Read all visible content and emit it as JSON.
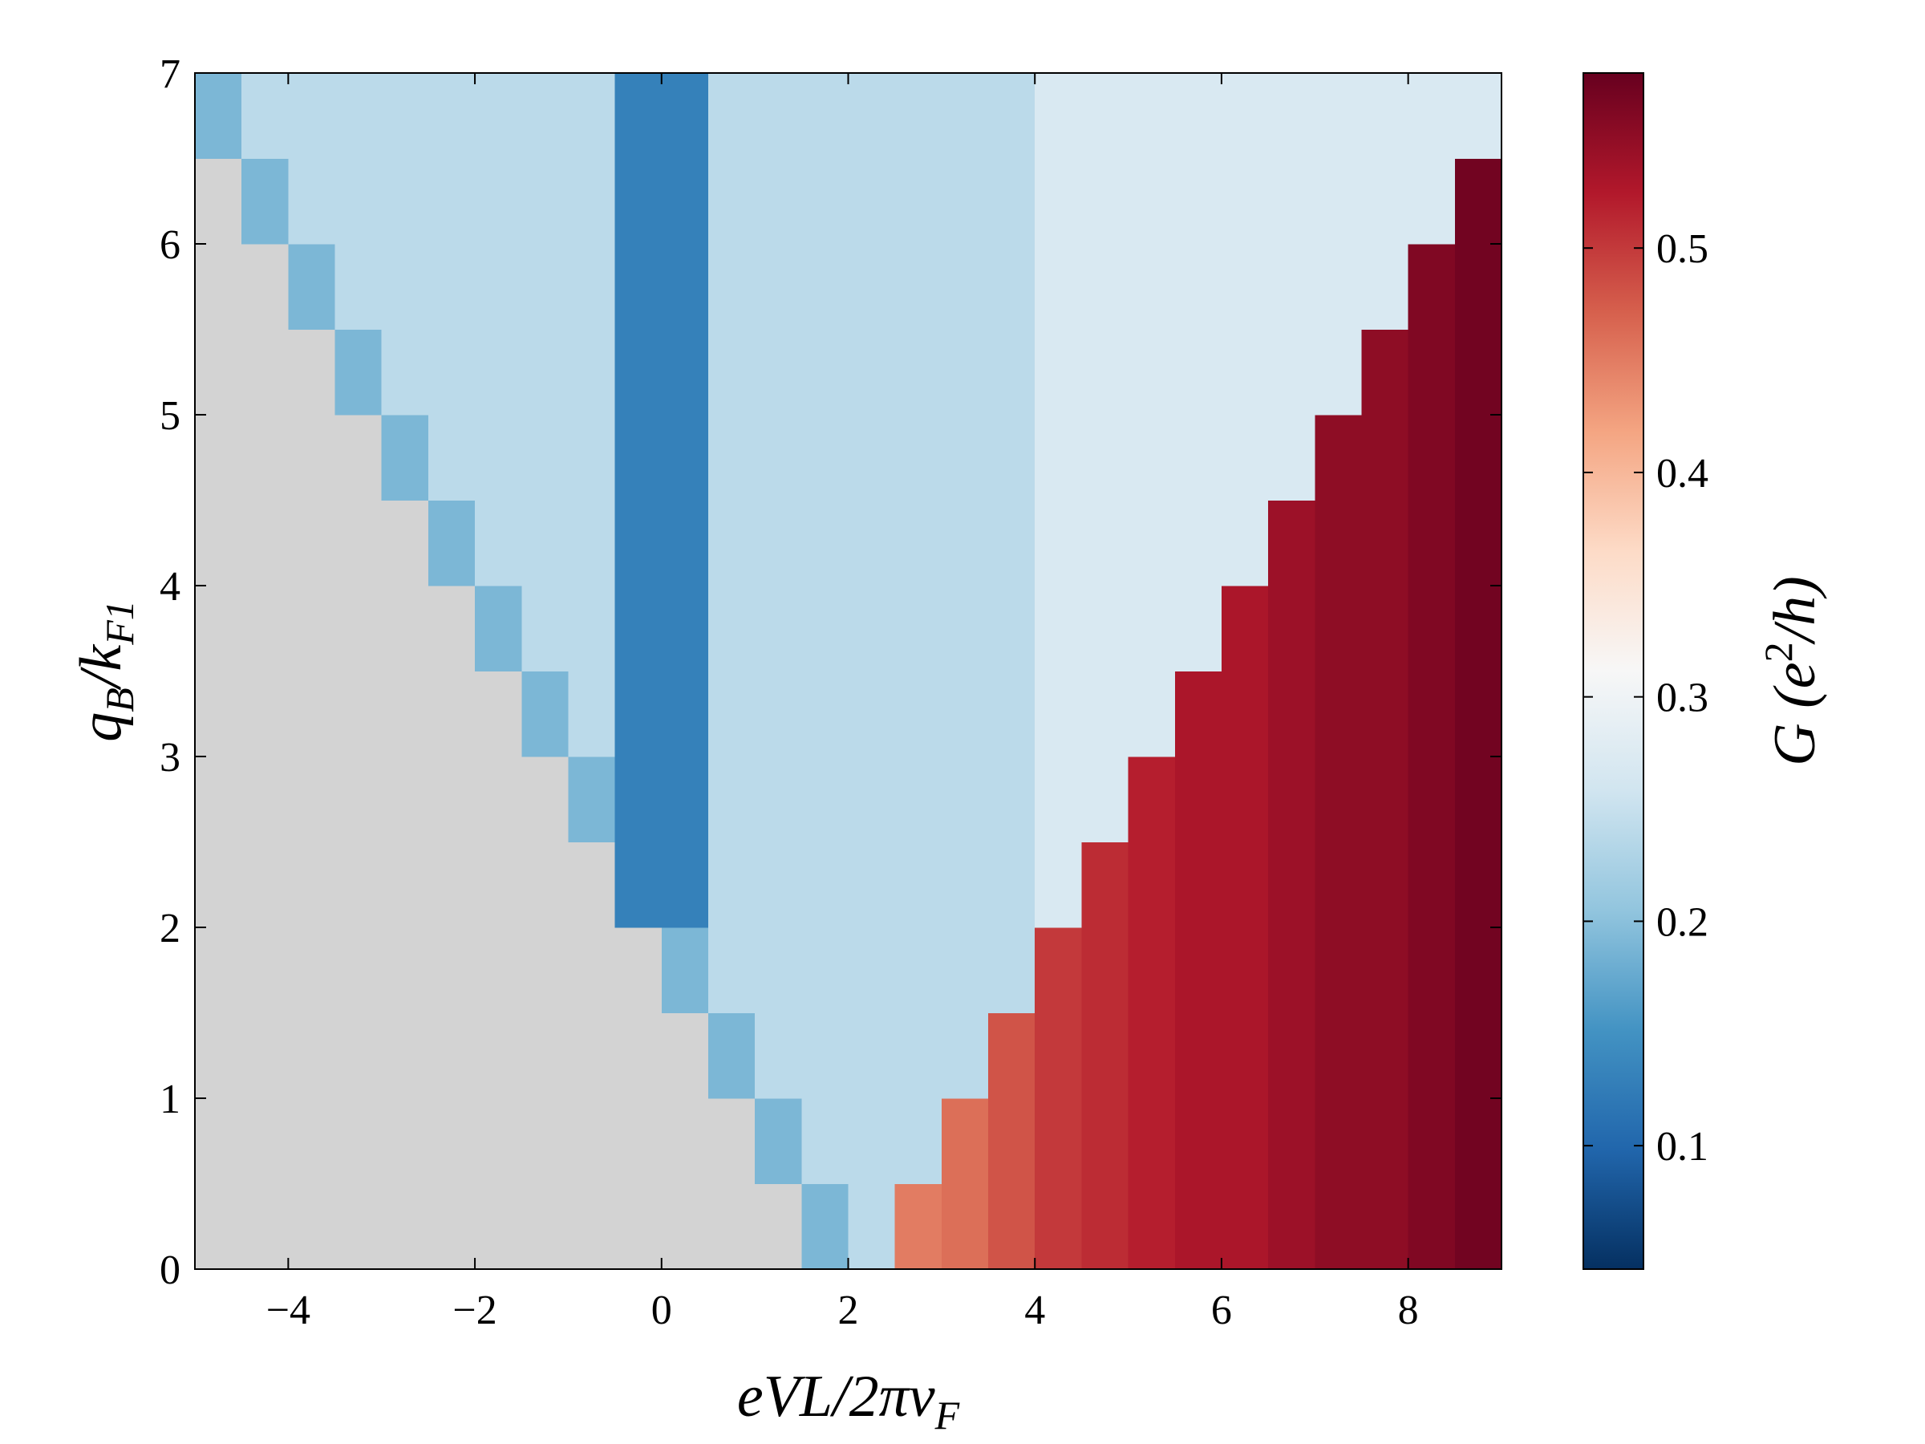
{
  "chart_data": {
    "type": "heatmap",
    "x_label": [
      "eVL/2πv",
      "F"
    ],
    "y_label": [
      "q",
      "B",
      "/k",
      "F1"
    ],
    "colorbar_label": [
      "G (e",
      "2",
      "/h)"
    ],
    "colormap": "RdBu_r",
    "null_color": "#d3d3d3",
    "xlim": [
      -5,
      9
    ],
    "ylim": [
      0,
      7
    ],
    "xticks": [
      {
        "value": -4,
        "label": "−4"
      },
      {
        "value": -2,
        "label": "−2"
      },
      0,
      2,
      4,
      6,
      8
    ],
    "yticks": [
      0,
      1,
      2,
      3,
      4,
      5,
      6,
      7
    ],
    "clim": [
      0.045,
      0.578
    ],
    "cticks": [
      0.1,
      0.2,
      0.3,
      0.4,
      0.5
    ],
    "x": [
      -4.75,
      -4.25,
      -3.75,
      -3.25,
      -2.75,
      -2.25,
      -1.75,
      -1.25,
      -0.75,
      -0.25,
      0.25,
      0.75,
      1.25,
      1.75,
      2.25,
      2.75,
      3.25,
      3.75,
      4.25,
      4.75,
      5.25,
      5.75,
      6.25,
      6.75,
      7.25,
      7.75,
      8.25,
      8.75
    ],
    "y": [
      0.25,
      0.75,
      1.25,
      1.75,
      2.25,
      2.75,
      3.25,
      3.75,
      4.25,
      4.75,
      5.25,
      5.75,
      6.25,
      6.75
    ],
    "values": [
      [
        null,
        null,
        null,
        null,
        null,
        null,
        null,
        null,
        null,
        null,
        null,
        null,
        null,
        0.19,
        0.24,
        0.45,
        0.46,
        0.48,
        0.5,
        0.51,
        0.52,
        0.53,
        0.53,
        0.54,
        0.55,
        0.55,
        0.56,
        0.57
      ],
      [
        null,
        null,
        null,
        null,
        null,
        null,
        null,
        null,
        null,
        null,
        null,
        null,
        0.19,
        0.24,
        0.24,
        0.24,
        0.46,
        0.48,
        0.5,
        0.51,
        0.52,
        0.53,
        0.53,
        0.54,
        0.55,
        0.55,
        0.56,
        0.57
      ],
      [
        null,
        null,
        null,
        null,
        null,
        null,
        null,
        null,
        null,
        null,
        null,
        0.19,
        0.24,
        0.24,
        0.24,
        0.24,
        0.24,
        0.48,
        0.5,
        0.51,
        0.52,
        0.53,
        0.53,
        0.54,
        0.55,
        0.55,
        0.56,
        0.57
      ],
      [
        null,
        null,
        null,
        null,
        null,
        null,
        null,
        null,
        null,
        null,
        0.19,
        0.24,
        0.24,
        0.24,
        0.24,
        0.24,
        0.24,
        0.24,
        0.5,
        0.51,
        0.52,
        0.53,
        0.53,
        0.54,
        0.55,
        0.55,
        0.56,
        0.57
      ],
      [
        null,
        null,
        null,
        null,
        null,
        null,
        null,
        null,
        null,
        0.13,
        0.13,
        0.24,
        0.24,
        0.24,
        0.24,
        0.24,
        0.24,
        0.24,
        0.27,
        0.51,
        0.52,
        0.53,
        0.53,
        0.54,
        0.55,
        0.55,
        0.56,
        0.57
      ],
      [
        null,
        null,
        null,
        null,
        null,
        null,
        null,
        null,
        0.19,
        0.13,
        0.13,
        0.24,
        0.24,
        0.24,
        0.24,
        0.24,
        0.24,
        0.24,
        0.27,
        0.27,
        0.52,
        0.53,
        0.53,
        0.54,
        0.55,
        0.55,
        0.56,
        0.57
      ],
      [
        null,
        null,
        null,
        null,
        null,
        null,
        null,
        0.19,
        0.24,
        0.13,
        0.13,
        0.24,
        0.24,
        0.24,
        0.24,
        0.24,
        0.24,
        0.24,
        0.27,
        0.27,
        0.27,
        0.53,
        0.53,
        0.54,
        0.55,
        0.55,
        0.56,
        0.57
      ],
      [
        null,
        null,
        null,
        null,
        null,
        null,
        0.19,
        0.24,
        0.24,
        0.13,
        0.13,
        0.24,
        0.24,
        0.24,
        0.24,
        0.24,
        0.24,
        0.24,
        0.27,
        0.27,
        0.27,
        0.27,
        0.53,
        0.54,
        0.55,
        0.55,
        0.56,
        0.57
      ],
      [
        null,
        null,
        null,
        null,
        null,
        0.19,
        0.24,
        0.24,
        0.24,
        0.13,
        0.13,
        0.24,
        0.24,
        0.24,
        0.24,
        0.24,
        0.24,
        0.24,
        0.27,
        0.27,
        0.27,
        0.27,
        0.27,
        0.54,
        0.55,
        0.55,
        0.56,
        0.57
      ],
      [
        null,
        null,
        null,
        null,
        0.19,
        0.24,
        0.24,
        0.24,
        0.24,
        0.13,
        0.13,
        0.24,
        0.24,
        0.24,
        0.24,
        0.24,
        0.24,
        0.24,
        0.27,
        0.27,
        0.27,
        0.27,
        0.27,
        0.27,
        0.55,
        0.55,
        0.56,
        0.57
      ],
      [
        null,
        null,
        null,
        0.19,
        0.24,
        0.24,
        0.24,
        0.24,
        0.24,
        0.13,
        0.13,
        0.24,
        0.24,
        0.24,
        0.24,
        0.24,
        0.24,
        0.24,
        0.27,
        0.27,
        0.27,
        0.27,
        0.27,
        0.27,
        0.27,
        0.55,
        0.56,
        0.57
      ],
      [
        null,
        null,
        0.19,
        0.24,
        0.24,
        0.24,
        0.24,
        0.24,
        0.24,
        0.13,
        0.13,
        0.24,
        0.24,
        0.24,
        0.24,
        0.24,
        0.24,
        0.24,
        0.27,
        0.27,
        0.27,
        0.27,
        0.27,
        0.27,
        0.27,
        0.27,
        0.56,
        0.57
      ],
      [
        null,
        0.19,
        0.24,
        0.24,
        0.24,
        0.24,
        0.24,
        0.24,
        0.24,
        0.13,
        0.13,
        0.24,
        0.24,
        0.24,
        0.24,
        0.24,
        0.24,
        0.24,
        0.27,
        0.27,
        0.27,
        0.27,
        0.27,
        0.27,
        0.27,
        0.27,
        0.27,
        0.57
      ],
      [
        0.19,
        0.24,
        0.24,
        0.24,
        0.24,
        0.24,
        0.24,
        0.24,
        0.24,
        0.13,
        0.13,
        0.24,
        0.24,
        0.24,
        0.24,
        0.24,
        0.24,
        0.24,
        0.27,
        0.27,
        0.27,
        0.27,
        0.27,
        0.27,
        0.27,
        0.27,
        0.27,
        0.27
      ]
    ]
  }
}
